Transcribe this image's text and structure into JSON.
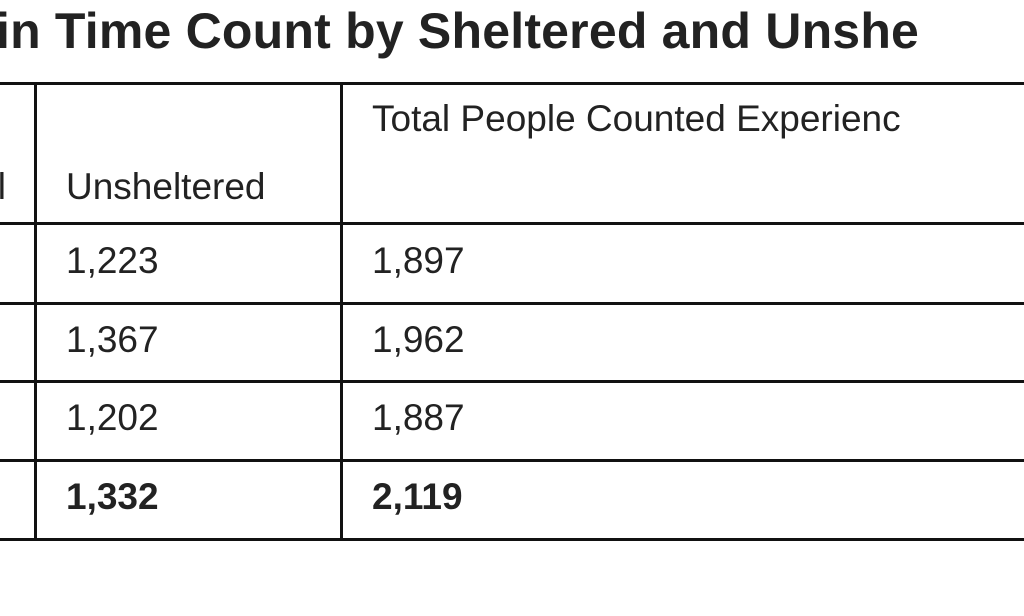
{
  "title": "in Time Count by Sheltered and Unshe",
  "table": {
    "headers": [
      "l",
      "Unsheltered",
      "Total People Counted Experienc"
    ],
    "rows": [
      {
        "unsheltered": "1,223",
        "total": "1,897"
      },
      {
        "unsheltered": "1,367",
        "total": "1,962"
      },
      {
        "unsheltered": "1,202",
        "total": "1,887"
      },
      {
        "unsheltered": "1,332",
        "total": "2,119",
        "bold": true
      }
    ]
  }
}
